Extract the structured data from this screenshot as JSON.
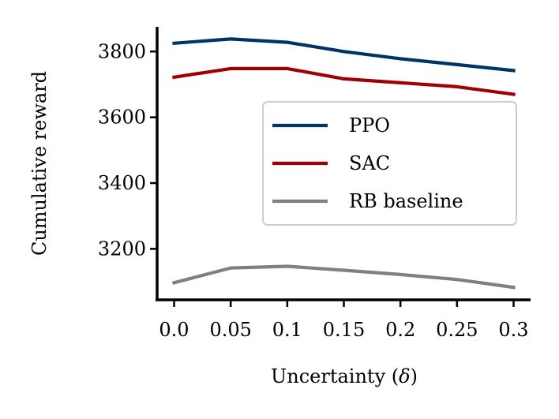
{
  "chart_data": {
    "type": "line",
    "x": [
      0.0,
      0.05,
      0.1,
      0.15,
      0.2,
      0.25,
      0.3
    ],
    "xtick_labels": [
      "0.0",
      "0.05",
      "0.1",
      "0.15",
      "0.2",
      "0.25",
      "0.3"
    ],
    "xlabel_text": "Uncertainty (",
    "xlabel_symbol": "δ",
    "xlabel_close": ")",
    "ylabel": "Cumulative reward",
    "yticks": [
      3200,
      3400,
      3600,
      3800
    ],
    "ylim": [
      3045,
      3875
    ],
    "xlim": [
      -0.015,
      0.315
    ],
    "grid": false,
    "legend_position": "center-right",
    "series": [
      {
        "name": "PPO",
        "color": "#003366",
        "values": [
          3825,
          3838,
          3828,
          3800,
          3778,
          3760,
          3742
        ]
      },
      {
        "name": "SAC",
        "color": "#a00000",
        "values": [
          3722,
          3748,
          3748,
          3717,
          3705,
          3693,
          3670
        ]
      },
      {
        "name": "RB baseline",
        "color": "#808080",
        "values": [
          3097,
          3142,
          3147,
          3135,
          3122,
          3107,
          3083
        ]
      }
    ]
  }
}
